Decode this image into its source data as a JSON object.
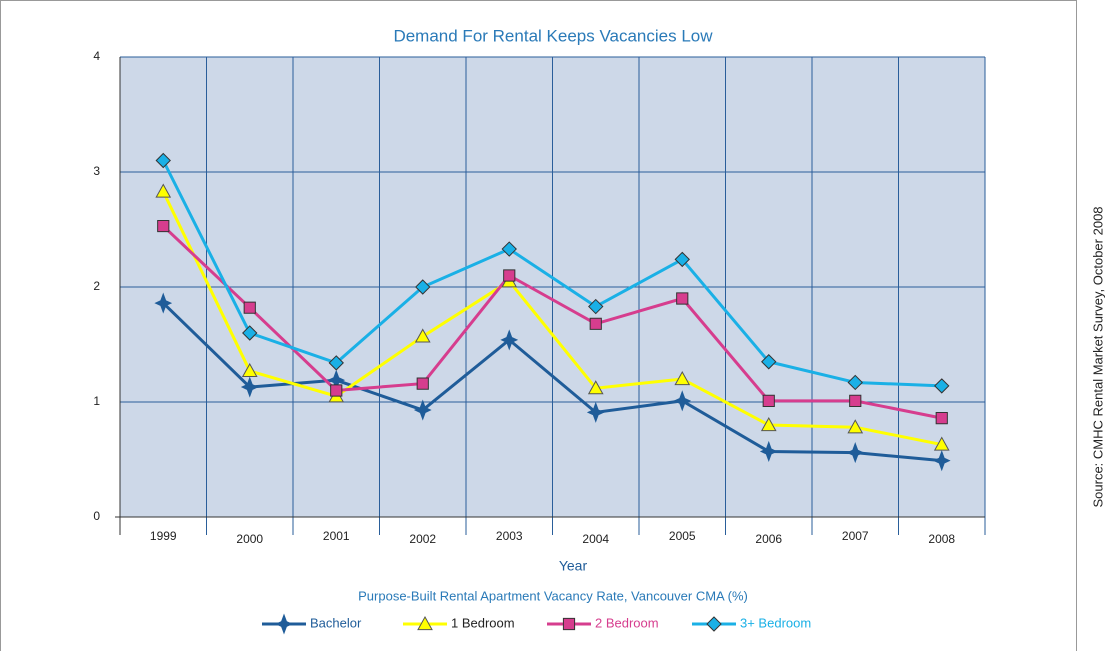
{
  "chart_data": {
    "type": "line",
    "title": "Demand For Rental Keeps Vacancies Low",
    "x_label": "Year",
    "subtitle": "Purpose-Built Rental Apartment Vacancy Rate, Vancouver CMA (%)",
    "source": "Source: CMHC Rental Market Survey, October 2008",
    "categories": [
      "1999",
      "2000",
      "2001",
      "2002",
      "2003",
      "2004",
      "2005",
      "2006",
      "2007",
      "2008"
    ],
    "series": [
      {
        "name": "Bachelor",
        "color": "#1f5c99",
        "marker": "star",
        "values": [
          1.86,
          1.13,
          1.19,
          0.93,
          1.54,
          0.91,
          1.01,
          0.57,
          0.56,
          0.49
        ]
      },
      {
        "name": "1 Bedroom",
        "color": "#ffff00",
        "marker": "triangle",
        "values": [
          2.83,
          1.27,
          1.05,
          1.57,
          2.05,
          1.12,
          1.2,
          0.8,
          0.78,
          0.63
        ]
      },
      {
        "name": "2 Bedroom",
        "color": "#d63d8e",
        "marker": "square",
        "values": [
          2.53,
          1.82,
          1.1,
          1.16,
          2.1,
          1.68,
          1.9,
          1.01,
          1.01,
          0.86
        ]
      },
      {
        "name": "3+ Bedroom",
        "color": "#1ab0e6",
        "marker": "diamond",
        "values": [
          3.1,
          1.6,
          1.34,
          2.0,
          2.33,
          1.83,
          2.24,
          1.35,
          1.17,
          1.14
        ]
      }
    ],
    "ylim": [
      0,
      4
    ],
    "yticks": [
      0,
      1,
      2,
      3,
      4
    ],
    "grid": true
  }
}
